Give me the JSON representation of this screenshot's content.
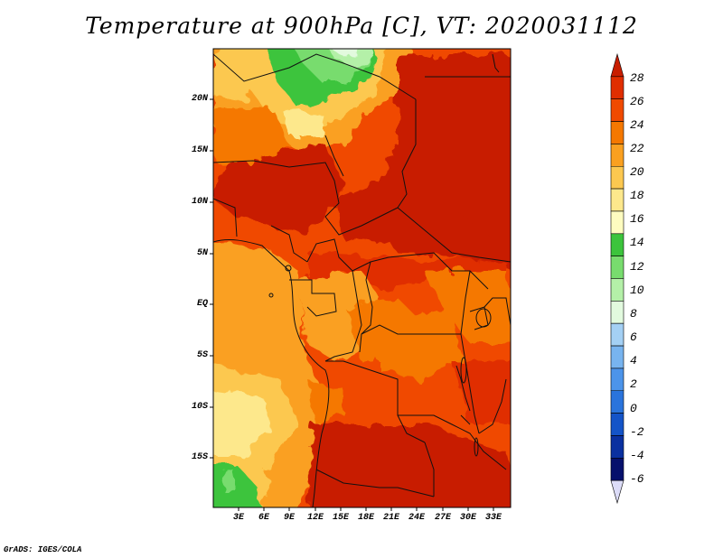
{
  "title": "Temperature at 900hPa [C], VT: 2020031112",
  "footer": "GrADS: IGES/COLA",
  "map": {
    "lat_labels": [
      "20N",
      "15N",
      "10N",
      "5N",
      "EQ",
      "5S",
      "10S",
      "15S"
    ],
    "lon_labels": [
      "3E",
      "6E",
      "9E",
      "12E",
      "15E",
      "18E",
      "21E",
      "24E",
      "27E",
      "30E",
      "33E"
    ]
  },
  "colorbar": {
    "labels": [
      "28",
      "26",
      "24",
      "22",
      "20",
      "18",
      "16",
      "14",
      "12",
      "10",
      "8",
      "6",
      "4",
      "2",
      "0",
      "-2",
      "-4",
      "-6"
    ],
    "colors": [
      "#c81e00",
      "#e02e00",
      "#f04a00",
      "#f57800",
      "#faa020",
      "#fcc850",
      "#fde88c",
      "#fefcc0",
      "#3cc43c",
      "#78dc6e",
      "#b4f0a8",
      "#e2fade",
      "#a4d0f4",
      "#78b4ef",
      "#4c94ea",
      "#2a74dc",
      "#1454c8",
      "#0a30a0",
      "#06106c",
      "#dcdcf8"
    ]
  }
}
